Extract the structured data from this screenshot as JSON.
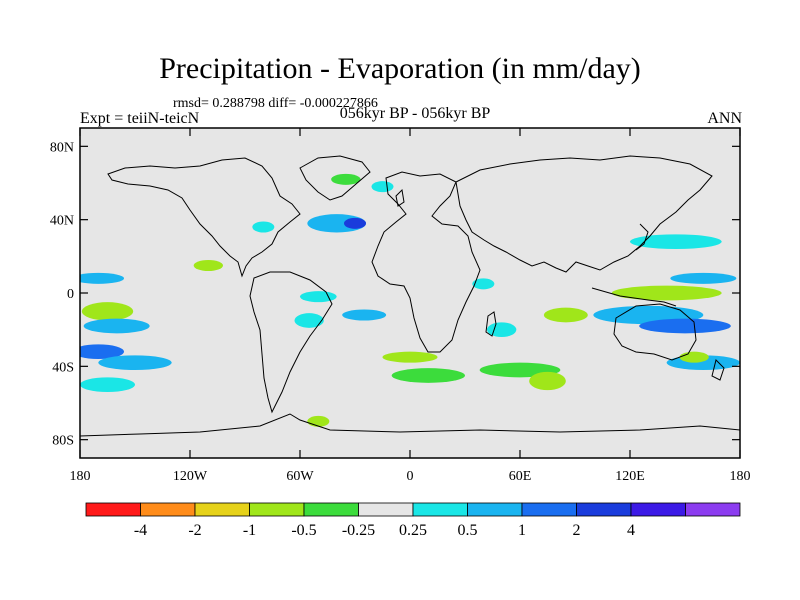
{
  "title": "Precipitation - Evaporation (in mm/day)",
  "stats": "rmsd= 0.288798 diff= -0.000227866",
  "experiment": "Expt = teiiN-teicN",
  "period": "056kyr BP - 056kyr BP",
  "season": "ANN",
  "map": {
    "lon_range": [
      -180,
      180
    ],
    "lat_range": [
      -90,
      90
    ],
    "lat_ticks": [
      {
        "value": 80,
        "label": "80N"
      },
      {
        "value": 40,
        "label": "40N"
      },
      {
        "value": 0,
        "label": "0"
      },
      {
        "value": -40,
        "label": "40S"
      },
      {
        "value": -80,
        "label": "80S"
      }
    ],
    "lon_ticks": [
      {
        "value": -180,
        "label": "180"
      },
      {
        "value": -120,
        "label": "120W"
      },
      {
        "value": -60,
        "label": "60W"
      },
      {
        "value": 0,
        "label": "0"
      },
      {
        "value": 60,
        "label": "60E"
      },
      {
        "value": 120,
        "label": "120E"
      },
      {
        "value": 180,
        "label": "180"
      }
    ],
    "background_color": "#e6e6e6"
  },
  "colorbar": {
    "colors": [
      "#ff1a1a",
      "#ff8c1a",
      "#e6d21a",
      "#a0e61a",
      "#3cdc3c",
      "#e6e6e6",
      "#1ae6e6",
      "#1ab4f0",
      "#1a6ef0",
      "#1a3cdc",
      "#3c1ae6",
      "#8c3cf0"
    ],
    "labels": [
      "-4",
      "-2",
      "-1",
      "-0.5",
      "-0.25",
      "0.25",
      "0.5",
      "1",
      "2",
      "4"
    ]
  },
  "anomalies": [
    {
      "lon": -170,
      "lat": 8,
      "rlon": 14,
      "rlat": 3,
      "cls": 7
    },
    {
      "lon": -165,
      "lat": -10,
      "rlon": 14,
      "rlat": 5,
      "cls": 3
    },
    {
      "lon": -160,
      "lat": -18,
      "rlon": 18,
      "rlat": 4,
      "cls": 7
    },
    {
      "lon": -170,
      "lat": -32,
      "rlon": 14,
      "rlat": 4,
      "cls": 8
    },
    {
      "lon": -150,
      "lat": -38,
      "rlon": 20,
      "rlat": 4,
      "cls": 7
    },
    {
      "lon": -165,
      "lat": -50,
      "rlon": 15,
      "rlat": 4,
      "cls": 6
    },
    {
      "lon": -110,
      "lat": 15,
      "rlon": 8,
      "rlat": 3,
      "cls": 3
    },
    {
      "lon": -80,
      "lat": 36,
      "rlon": 6,
      "rlat": 3,
      "cls": 6
    },
    {
      "lon": -40,
      "lat": 38,
      "rlon": 16,
      "rlat": 5,
      "cls": 7
    },
    {
      "lon": -30,
      "lat": 38,
      "rlon": 6,
      "rlat": 3,
      "cls": 9
    },
    {
      "lon": -35,
      "lat": 62,
      "rlon": 8,
      "rlat": 3,
      "cls": 4
    },
    {
      "lon": -15,
      "lat": 58,
      "rlon": 6,
      "rlat": 3,
      "cls": 6
    },
    {
      "lon": -50,
      "lat": -2,
      "rlon": 10,
      "rlat": 3,
      "cls": 6
    },
    {
      "lon": -25,
      "lat": -12,
      "rlon": 12,
      "rlat": 3,
      "cls": 7
    },
    {
      "lon": -55,
      "lat": -15,
      "rlon": 8,
      "rlat": 4,
      "cls": 6
    },
    {
      "lon": 0,
      "lat": -35,
      "rlon": 15,
      "rlat": 3,
      "cls": 3
    },
    {
      "lon": 10,
      "lat": -45,
      "rlon": 20,
      "rlat": 4,
      "cls": 4
    },
    {
      "lon": 60,
      "lat": -42,
      "rlon": 22,
      "rlat": 4,
      "cls": 4
    },
    {
      "lon": 75,
      "lat": -48,
      "rlon": 10,
      "rlat": 5,
      "cls": 3
    },
    {
      "lon": 50,
      "lat": -20,
      "rlon": 8,
      "rlat": 4,
      "cls": 6
    },
    {
      "lon": 85,
      "lat": -12,
      "rlon": 12,
      "rlat": 4,
      "cls": 3
    },
    {
      "lon": 130,
      "lat": -12,
      "rlon": 30,
      "rlat": 5,
      "cls": 7
    },
    {
      "lon": 150,
      "lat": -18,
      "rlon": 25,
      "rlat": 4,
      "cls": 8
    },
    {
      "lon": 140,
      "lat": 0,
      "rlon": 30,
      "rlat": 4,
      "cls": 3
    },
    {
      "lon": 160,
      "lat": 8,
      "rlon": 18,
      "rlat": 3,
      "cls": 7
    },
    {
      "lon": 145,
      "lat": 28,
      "rlon": 25,
      "rlat": 4,
      "cls": 6
    },
    {
      "lon": 160,
      "lat": -38,
      "rlon": 20,
      "rlat": 4,
      "cls": 7
    },
    {
      "lon": 155,
      "lat": -35,
      "rlon": 8,
      "rlat": 3,
      "cls": 3
    },
    {
      "lon": 40,
      "lat": 5,
      "rlon": 6,
      "rlat": 3,
      "cls": 6
    },
    {
      "lon": -50,
      "lat": -70,
      "rlon": 6,
      "rlat": 3,
      "cls": 3
    }
  ]
}
